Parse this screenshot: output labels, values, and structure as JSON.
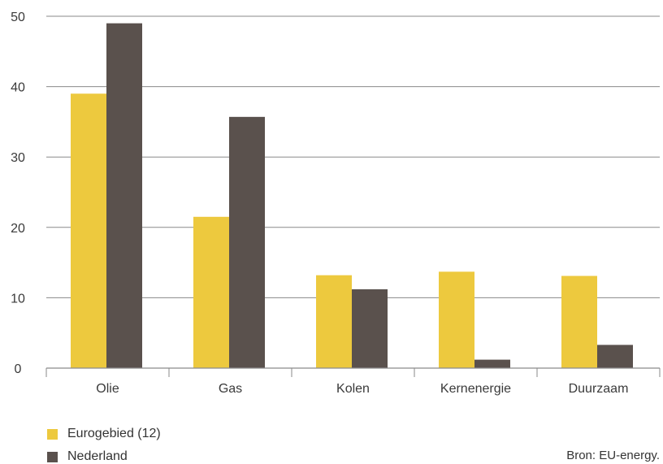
{
  "chart_data": {
    "type": "bar",
    "categories": [
      "Olie",
      "Gas",
      "Kolen",
      "Kernenergie",
      "Duurzaam"
    ],
    "series": [
      {
        "name": "Eurogebied (12)",
        "color": "#EDC93E",
        "values": [
          39,
          21.5,
          13.2,
          13.7,
          13.1
        ]
      },
      {
        "name": "Nederland",
        "color": "#5A514D",
        "values": [
          49,
          35.7,
          11.2,
          1.2,
          3.3
        ]
      }
    ],
    "yticks": [
      0,
      10,
      20,
      30,
      40,
      50
    ],
    "ylim": [
      0,
      50
    ],
    "grid": true,
    "legend_position": "bottom-left",
    "title": "",
    "xlabel": "",
    "ylabel": ""
  },
  "source": "Bron: EU-energy."
}
